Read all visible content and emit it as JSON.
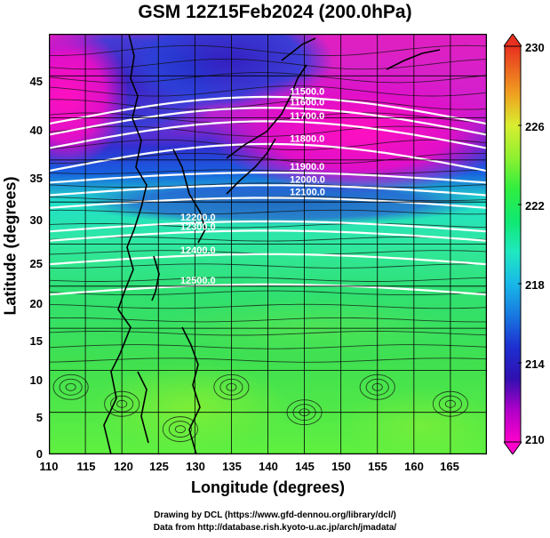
{
  "title": "GSM 12Z15Feb2024 (200.0hPa)",
  "map": {
    "x_label": "Longitude (degrees)",
    "y_label": "Latitude  (degrees)",
    "lon_range": [
      110,
      170
    ],
    "lat_range": [
      0,
      50
    ],
    "lon_ticks": [
      "110",
      "115",
      "120",
      "125",
      "130",
      "135",
      "140",
      "145",
      "150",
      "155",
      "160",
      "165"
    ],
    "lat_ticks": [
      "45",
      "40",
      "35",
      "30",
      "25",
      "20",
      "15",
      "10",
      "5",
      "0"
    ],
    "fill_field": "temperature shading",
    "vector_field": "wind streamlines",
    "contour_labels": [
      "11500.0",
      "11600.0",
      "11700.0",
      "11800.0",
      "11900.0",
      "12000.0",
      "12100.0",
      "12200.0",
      "12300.0",
      "12400.0",
      "12500.0"
    ]
  },
  "colorbar": {
    "min": 210,
    "max": 230,
    "ticks": [
      "230",
      "226",
      "222",
      "218",
      "214",
      "210"
    ],
    "colors": [
      "#ff00cc",
      "#5a00b0",
      "#1d2fd0",
      "#1d8fe0",
      "#20e8c0",
      "#10e860",
      "#50f040",
      "#a8f02a",
      "#f0e030",
      "#f08020",
      "#e83020"
    ]
  },
  "credits": {
    "line1": "Drawing by DCL (https://www.gfd-dennou.org/library/dcl/)",
    "line2": "Data from http://database.rish.kyoto-u.ac.jp/arch/jmadata/"
  }
}
